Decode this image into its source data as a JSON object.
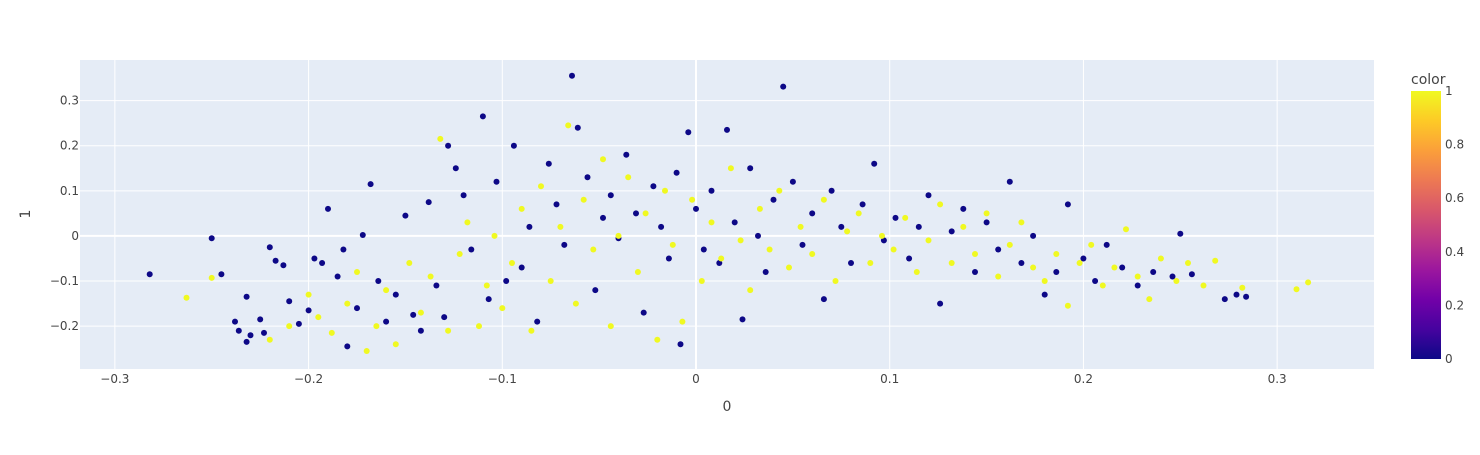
{
  "chart_data": {
    "type": "scatter",
    "title": "",
    "xlabel": "0",
    "ylabel": "1",
    "xlim": [
      -0.318,
      0.35
    ],
    "ylim": [
      -0.295,
      0.39
    ],
    "x_ticks": [
      -0.3,
      -0.2,
      -0.1,
      0,
      0.1,
      0.2,
      0.3
    ],
    "x_tick_labels": [
      "−0.3",
      "−0.2",
      "−0.1",
      "0",
      "0.1",
      "0.2",
      "0.3"
    ],
    "y_ticks": [
      -0.2,
      -0.1,
      0,
      0.1,
      0.2,
      0.3
    ],
    "y_tick_labels": [
      "−0.2",
      "−0.1",
      "0",
      "0.1",
      "0.2",
      "0.3"
    ],
    "grid": true,
    "plot_background": "#e5ecf6",
    "colorbar": {
      "title": "color",
      "range": [
        0,
        1
      ],
      "ticks": [
        0,
        0.2,
        0.4,
        0.6,
        0.8,
        1
      ],
      "tick_labels": [
        "0",
        "0.2",
        "0.4",
        "0.6",
        "0.8",
        "1"
      ],
      "colorscale": [
        "#0d0887",
        "#46039f",
        "#7201a8",
        "#9c179e",
        "#bd3786",
        "#d8576b",
        "#ed7953",
        "#fb9f3a",
        "#fdca26",
        "#f0f921"
      ]
    },
    "series": [
      {
        "color_value": 0,
        "color": "#0d0887",
        "points": [
          [
            -0.282,
            -0.085
          ],
          [
            -0.25,
            -0.005
          ],
          [
            -0.245,
            -0.085
          ],
          [
            -0.238,
            -0.19
          ],
          [
            -0.236,
            -0.21
          ],
          [
            -0.232,
            -0.235
          ],
          [
            -0.23,
            -0.22
          ],
          [
            -0.232,
            -0.135
          ],
          [
            -0.225,
            -0.185
          ],
          [
            -0.223,
            -0.215
          ],
          [
            -0.22,
            -0.025
          ],
          [
            -0.217,
            -0.055
          ],
          [
            -0.213,
            -0.065
          ],
          [
            -0.21,
            -0.145
          ],
          [
            -0.205,
            -0.195
          ],
          [
            -0.2,
            -0.165
          ],
          [
            -0.197,
            -0.05
          ],
          [
            -0.193,
            -0.06
          ],
          [
            -0.19,
            0.06
          ],
          [
            -0.185,
            -0.09
          ],
          [
            -0.182,
            -0.03
          ],
          [
            -0.18,
            -0.245
          ],
          [
            -0.175,
            -0.16
          ],
          [
            -0.172,
            0.002
          ],
          [
            -0.168,
            0.115
          ],
          [
            -0.164,
            -0.1
          ],
          [
            -0.16,
            -0.19
          ],
          [
            -0.155,
            -0.13
          ],
          [
            -0.15,
            0.045
          ],
          [
            -0.146,
            -0.175
          ],
          [
            -0.142,
            -0.21
          ],
          [
            -0.138,
            0.075
          ],
          [
            -0.134,
            -0.11
          ],
          [
            -0.13,
            -0.18
          ],
          [
            -0.128,
            0.2
          ],
          [
            -0.124,
            0.15
          ],
          [
            -0.12,
            0.09
          ],
          [
            -0.116,
            -0.03
          ],
          [
            -0.11,
            0.265
          ],
          [
            -0.107,
            -0.14
          ],
          [
            -0.103,
            0.12
          ],
          [
            -0.098,
            -0.1
          ],
          [
            -0.094,
            0.2
          ],
          [
            -0.09,
            -0.07
          ],
          [
            -0.086,
            0.02
          ],
          [
            -0.082,
            -0.19
          ],
          [
            -0.076,
            0.16
          ],
          [
            -0.072,
            0.07
          ],
          [
            -0.068,
            -0.02
          ],
          [
            -0.064,
            0.355
          ],
          [
            -0.061,
            0.24
          ],
          [
            -0.056,
            0.13
          ],
          [
            -0.052,
            -0.12
          ],
          [
            -0.048,
            0.04
          ],
          [
            -0.044,
            0.09
          ],
          [
            -0.04,
            -0.005
          ],
          [
            -0.036,
            0.18
          ],
          [
            -0.031,
            0.05
          ],
          [
            -0.027,
            -0.17
          ],
          [
            -0.022,
            0.11
          ],
          [
            -0.018,
            0.02
          ],
          [
            -0.014,
            -0.05
          ],
          [
            -0.01,
            0.14
          ],
          [
            -0.008,
            -0.24
          ],
          [
            -0.004,
            0.23
          ],
          [
            0.0,
            0.06
          ],
          [
            0.004,
            -0.03
          ],
          [
            0.008,
            0.1
          ],
          [
            0.012,
            -0.06
          ],
          [
            0.016,
            0.235
          ],
          [
            0.02,
            0.03
          ],
          [
            0.024,
            -0.185
          ],
          [
            0.028,
            0.15
          ],
          [
            0.032,
            0.0
          ],
          [
            0.036,
            -0.08
          ],
          [
            0.04,
            0.08
          ],
          [
            0.045,
            0.331
          ],
          [
            0.05,
            0.12
          ],
          [
            0.055,
            -0.02
          ],
          [
            0.06,
            0.05
          ],
          [
            0.066,
            -0.14
          ],
          [
            0.07,
            0.1
          ],
          [
            0.075,
            0.02
          ],
          [
            0.08,
            -0.06
          ],
          [
            0.086,
            0.07
          ],
          [
            0.092,
            0.16
          ],
          [
            0.097,
            -0.01
          ],
          [
            0.103,
            0.04
          ],
          [
            0.11,
            -0.05
          ],
          [
            0.115,
            0.02
          ],
          [
            0.12,
            0.09
          ],
          [
            0.126,
            -0.15
          ],
          [
            0.132,
            0.01
          ],
          [
            0.138,
            0.06
          ],
          [
            0.144,
            -0.08
          ],
          [
            0.15,
            0.03
          ],
          [
            0.156,
            -0.03
          ],
          [
            0.162,
            0.12
          ],
          [
            0.168,
            -0.06
          ],
          [
            0.174,
            0.0
          ],
          [
            0.18,
            -0.13
          ],
          [
            0.186,
            -0.08
          ],
          [
            0.192,
            0.07
          ],
          [
            0.2,
            -0.05
          ],
          [
            0.206,
            -0.1
          ],
          [
            0.212,
            -0.02
          ],
          [
            0.22,
            -0.07
          ],
          [
            0.228,
            -0.11
          ],
          [
            0.236,
            -0.08
          ],
          [
            0.246,
            -0.09
          ],
          [
            0.25,
            0.005
          ],
          [
            0.256,
            -0.085
          ],
          [
            0.273,
            -0.14
          ],
          [
            0.279,
            -0.13
          ],
          [
            0.284,
            -0.135
          ]
        ]
      },
      {
        "color_value": 1,
        "color": "#f0f921",
        "points": [
          [
            -0.263,
            -0.137
          ],
          [
            -0.25,
            -0.093
          ],
          [
            -0.22,
            -0.23
          ],
          [
            -0.21,
            -0.2
          ],
          [
            -0.2,
            -0.13
          ],
          [
            -0.195,
            -0.18
          ],
          [
            -0.188,
            -0.215
          ],
          [
            -0.18,
            -0.15
          ],
          [
            -0.175,
            -0.08
          ],
          [
            -0.17,
            -0.255
          ],
          [
            -0.165,
            -0.2
          ],
          [
            -0.16,
            -0.12
          ],
          [
            -0.155,
            -0.24
          ],
          [
            -0.148,
            -0.06
          ],
          [
            -0.142,
            -0.17
          ],
          [
            -0.137,
            -0.09
          ],
          [
            -0.132,
            0.215
          ],
          [
            -0.128,
            -0.21
          ],
          [
            -0.122,
            -0.04
          ],
          [
            -0.118,
            0.03
          ],
          [
            -0.112,
            -0.2
          ],
          [
            -0.108,
            -0.11
          ],
          [
            -0.104,
            0.0
          ],
          [
            -0.1,
            -0.16
          ],
          [
            -0.095,
            -0.06
          ],
          [
            -0.09,
            0.06
          ],
          [
            -0.085,
            -0.21
          ],
          [
            -0.08,
            0.11
          ],
          [
            -0.075,
            -0.1
          ],
          [
            -0.07,
            0.02
          ],
          [
            -0.066,
            0.245
          ],
          [
            -0.062,
            -0.15
          ],
          [
            -0.058,
            0.08
          ],
          [
            -0.053,
            -0.03
          ],
          [
            -0.048,
            0.17
          ],
          [
            -0.044,
            -0.2
          ],
          [
            -0.04,
            0.0
          ],
          [
            -0.035,
            0.13
          ],
          [
            -0.03,
            -0.08
          ],
          [
            -0.026,
            0.05
          ],
          [
            -0.02,
            -0.23
          ],
          [
            -0.016,
            0.1
          ],
          [
            -0.012,
            -0.02
          ],
          [
            -0.007,
            -0.19
          ],
          [
            -0.002,
            0.08
          ],
          [
            0.003,
            -0.1
          ],
          [
            0.008,
            0.03
          ],
          [
            0.013,
            -0.05
          ],
          [
            0.018,
            0.15
          ],
          [
            0.023,
            -0.01
          ],
          [
            0.028,
            -0.12
          ],
          [
            0.033,
            0.06
          ],
          [
            0.038,
            -0.03
          ],
          [
            0.043,
            0.1
          ],
          [
            0.048,
            -0.07
          ],
          [
            0.054,
            0.02
          ],
          [
            0.06,
            -0.04
          ],
          [
            0.066,
            0.08
          ],
          [
            0.072,
            -0.1
          ],
          [
            0.078,
            0.01
          ],
          [
            0.084,
            0.05
          ],
          [
            0.09,
            -0.06
          ],
          [
            0.096,
            0.0
          ],
          [
            0.102,
            -0.03
          ],
          [
            0.108,
            0.04
          ],
          [
            0.114,
            -0.08
          ],
          [
            0.12,
            -0.01
          ],
          [
            0.126,
            0.07
          ],
          [
            0.132,
            -0.06
          ],
          [
            0.138,
            0.02
          ],
          [
            0.144,
            -0.04
          ],
          [
            0.15,
            0.05
          ],
          [
            0.156,
            -0.09
          ],
          [
            0.162,
            -0.02
          ],
          [
            0.168,
            0.03
          ],
          [
            0.174,
            -0.07
          ],
          [
            0.18,
            -0.1
          ],
          [
            0.186,
            -0.04
          ],
          [
            0.192,
            -0.155
          ],
          [
            0.198,
            -0.06
          ],
          [
            0.204,
            -0.02
          ],
          [
            0.21,
            -0.11
          ],
          [
            0.216,
            -0.07
          ],
          [
            0.222,
            0.015
          ],
          [
            0.228,
            -0.09
          ],
          [
            0.234,
            -0.14
          ],
          [
            0.24,
            -0.05
          ],
          [
            0.248,
            -0.1
          ],
          [
            0.254,
            -0.06
          ],
          [
            0.262,
            -0.11
          ],
          [
            0.268,
            -0.055
          ],
          [
            0.282,
            -0.115
          ],
          [
            0.31,
            -0.118
          ],
          [
            0.316,
            -0.103
          ]
        ]
      }
    ]
  }
}
